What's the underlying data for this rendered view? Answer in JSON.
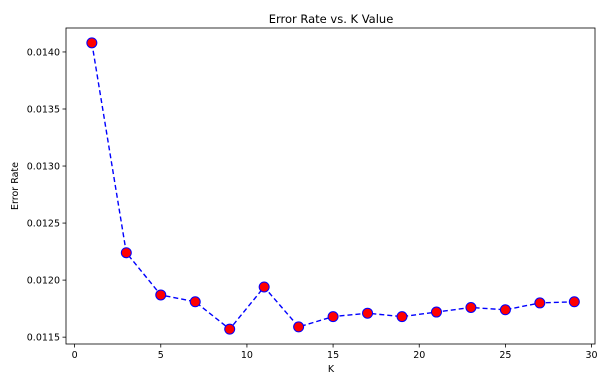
{
  "chart_data": {
    "type": "line",
    "title": "Error Rate vs. K Value",
    "xlabel": "K",
    "ylabel": "Error Rate",
    "xlim": [
      -0.5,
      30.2
    ],
    "ylim": [
      0.01144,
      0.01421
    ],
    "xticks": [
      0,
      5,
      10,
      15,
      20,
      25,
      30
    ],
    "xtick_labels": [
      "0",
      "5",
      "10",
      "15",
      "20",
      "25",
      "30"
    ],
    "yticks": [
      0.0115,
      0.012,
      0.0125,
      0.013,
      0.0135,
      0.014
    ],
    "ytick_labels": [
      "0.0115",
      "0.0120",
      "0.0125",
      "0.0130",
      "0.0135",
      "0.0140"
    ],
    "grid": false,
    "series": [
      {
        "line_color": "#0000ff",
        "line_style": "dashed",
        "marker": "circle",
        "marker_face_color": "#ff0000",
        "marker_edge_color": "#0000ff",
        "x": [
          1,
          3,
          5,
          7,
          9,
          11,
          13,
          15,
          17,
          19,
          21,
          23,
          25,
          27,
          29
        ],
        "y": [
          0.01408,
          0.01224,
          0.01187,
          0.01181,
          0.01157,
          0.01194,
          0.01159,
          0.01168,
          0.01171,
          0.01168,
          0.01172,
          0.01176,
          0.01174,
          0.0118,
          0.01181
        ]
      }
    ]
  }
}
